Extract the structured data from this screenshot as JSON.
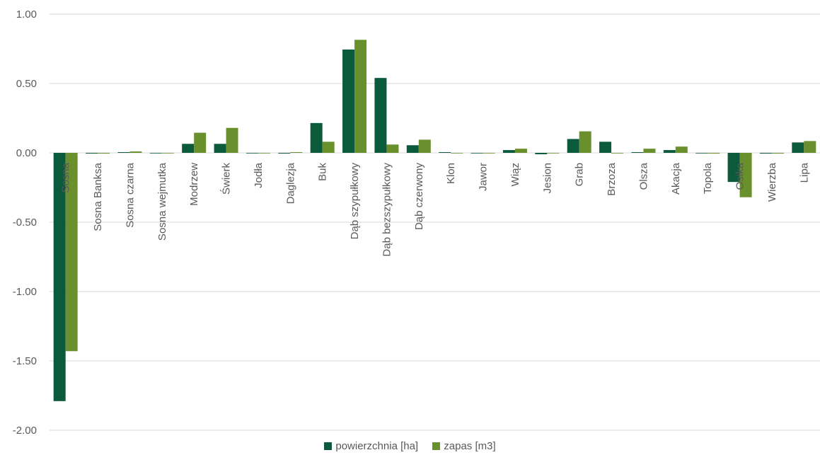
{
  "chart_data": {
    "type": "bar",
    "categories": [
      "Sosna",
      "Sosna Banksa",
      "Sosna czarna",
      "Sosna wejmutka",
      "Modrzew",
      "Świerk",
      "Jodła",
      "Daglezja",
      "Buk",
      "Dąb szypułkowy",
      "Dąb bezszypułkowy",
      "Dąb czerwony",
      "Klon",
      "Jawor",
      "Wiąz",
      "Jesion",
      "Grab",
      "Brzoza",
      "Olsza",
      "Akacja",
      "Topola",
      "Osika",
      "Wierzba",
      "Lipa"
    ],
    "series": [
      {
        "name": "powierzchnia [ha]",
        "color": "#0b5a3c",
        "values": [
          -1.79,
          -0.005,
          0.005,
          0.0,
          0.065,
          0.065,
          0.0,
          -0.005,
          0.215,
          0.745,
          0.54,
          0.055,
          0.005,
          0.0,
          0.02,
          -0.01,
          0.1,
          0.08,
          0.005,
          0.02,
          0.0,
          -0.21,
          -0.005,
          0.075
        ]
      },
      {
        "name": "zapas [m3]",
        "color": "#6a8f2d",
        "values": [
          -1.43,
          -0.005,
          0.01,
          0.0,
          0.145,
          0.18,
          0.0,
          0.005,
          0.08,
          0.815,
          0.06,
          0.095,
          0.0,
          0.0,
          0.03,
          0.0,
          0.155,
          0.0,
          0.03,
          0.045,
          -0.005,
          -0.32,
          -0.005,
          0.085
        ]
      }
    ],
    "ylim": [
      -2.0,
      1.0
    ],
    "yticks": [
      "1.00",
      "0.50",
      "0.00",
      "-0.50",
      "-1.00",
      "-1.50",
      "-2.00"
    ],
    "grid": true,
    "legend_position": "bottom"
  }
}
